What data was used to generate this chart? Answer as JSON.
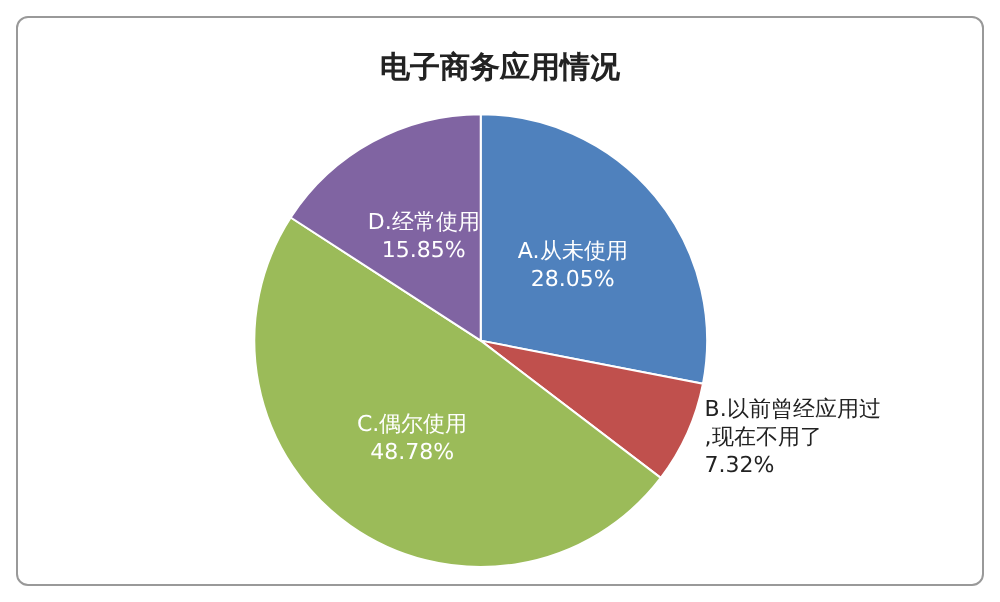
{
  "chart_data": {
    "type": "pie",
    "title": "电子商务应用情况",
    "categories": [
      "A.从未使用",
      "B.以前曾经应用过,现在不用了",
      "C.偶尔使用",
      "D.经常使用"
    ],
    "values": [
      28.05,
      7.32,
      48.78,
      15.85
    ],
    "value_labels": [
      "28.05%",
      "7.32%",
      "48.78%",
      "15.85%"
    ],
    "colors": [
      "#4f81bd",
      "#c0504d",
      "#9bbb59",
      "#8064a2"
    ],
    "legend": false
  }
}
